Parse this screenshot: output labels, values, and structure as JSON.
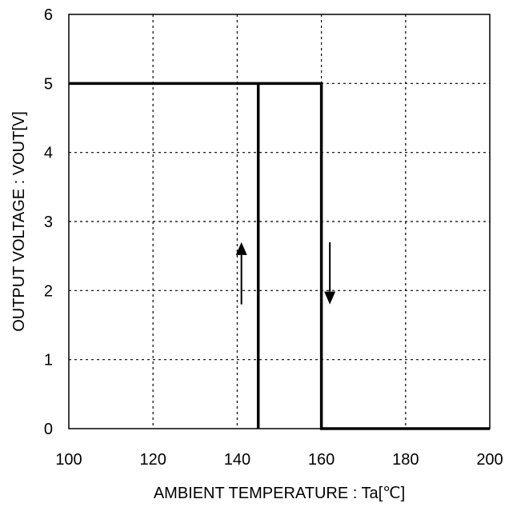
{
  "chart_data": {
    "type": "line",
    "title": "",
    "xlabel": "AMBIENT TEMPERATURE : Ta[℃]",
    "ylabel": "OUTPUT VOLTAGE : VOUT[V]",
    "xlim": [
      100,
      200
    ],
    "ylim": [
      0,
      6
    ],
    "xticks": [
      100,
      120,
      140,
      160,
      180,
      200
    ],
    "yticks": [
      0,
      1,
      2,
      3,
      4,
      5,
      6
    ],
    "grid": true,
    "grid_style": "dotted",
    "legend": false,
    "series": [
      {
        "x": [
          100,
          160,
          160,
          200
        ],
        "y": [
          5,
          5,
          0,
          0
        ],
        "color": "#000000"
      },
      {
        "x": [
          145,
          145
        ],
        "y": [
          0,
          5
        ],
        "color": "#000000"
      }
    ],
    "annotations": [
      {
        "type": "arrow",
        "direction": "up",
        "x": 141,
        "y_from": 1.8,
        "y_to": 2.7
      },
      {
        "type": "arrow",
        "direction": "down",
        "x": 162,
        "y_from": 2.7,
        "y_to": 1.8
      }
    ]
  }
}
